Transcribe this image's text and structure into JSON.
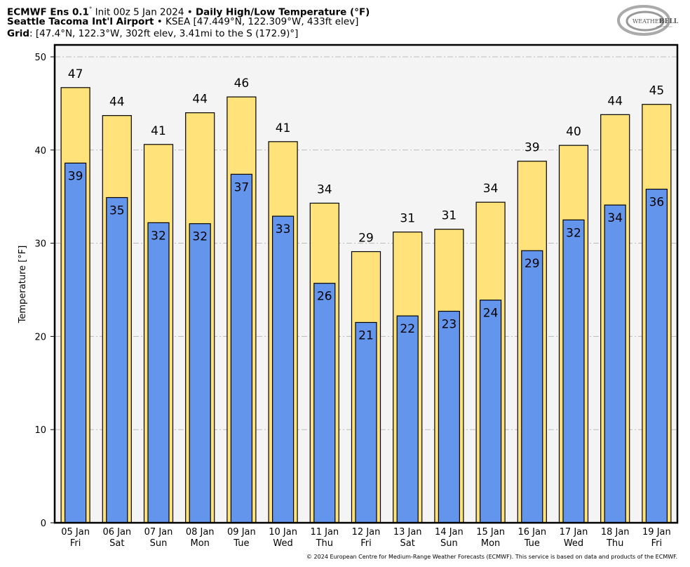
{
  "header": {
    "line1": {
      "model": "ECMWF Ens 0.1",
      "deg": "°",
      "init": " Init 00z 5 Jan 2024 • ",
      "product": "Daily High/Low Temperature (°F)"
    },
    "line2": {
      "station": "Seattle Tacoma Int'l Airport",
      "details": " • KSEA [47.449°N, 122.309°W, 433ft elev]"
    },
    "line3": {
      "label": "Grid",
      "details": ": [47.4°N, 122.3°W, 302ft elev, 3.41mi to the S (172.9)°]"
    }
  },
  "logo": {
    "text_main": "WEATHER",
    "text_bold": "BELL",
    "text_sub": "ANALYTICS LLC"
  },
  "footer": "© 2024 European Centre for Medium-Range Weather Forecasts (ECMWF). This service is based on data and products of the ECMWF.",
  "colors": {
    "high": "#FFE37A",
    "low": "#6495ED",
    "plot_bg": "#F4F4F4",
    "grid": "#BBBBBB"
  },
  "chart_data": {
    "type": "bar",
    "title": "Daily High/Low Temperature (°F)",
    "xlabel": "",
    "ylabel": "Temperature [°F]",
    "ylim": [
      0,
      51
    ],
    "yticks": [
      0,
      10,
      20,
      30,
      40,
      50
    ],
    "grid": true,
    "categories": [
      {
        "date": "05 Jan",
        "day": "Fri"
      },
      {
        "date": "06 Jan",
        "day": "Sat"
      },
      {
        "date": "07 Jan",
        "day": "Sun"
      },
      {
        "date": "08 Jan",
        "day": "Mon"
      },
      {
        "date": "09 Jan",
        "day": "Tue"
      },
      {
        "date": "10 Jan",
        "day": "Wed"
      },
      {
        "date": "11 Jan",
        "day": "Thu"
      },
      {
        "date": "12 Jan",
        "day": "Fri"
      },
      {
        "date": "13 Jan",
        "day": "Sat"
      },
      {
        "date": "14 Jan",
        "day": "Sun"
      },
      {
        "date": "15 Jan",
        "day": "Mon"
      },
      {
        "date": "16 Jan",
        "day": "Tue"
      },
      {
        "date": "17 Jan",
        "day": "Wed"
      },
      {
        "date": "18 Jan",
        "day": "Thu"
      },
      {
        "date": "19 Jan",
        "day": "Fri"
      }
    ],
    "series": [
      {
        "name": "High",
        "values": [
          46.7,
          43.7,
          40.6,
          44.0,
          45.7,
          40.9,
          34.3,
          29.1,
          31.2,
          31.5,
          34.4,
          38.8,
          40.5,
          43.8,
          44.9
        ],
        "labels": [
          "47",
          "44",
          "41",
          "44",
          "46",
          "41",
          "34",
          "29",
          "31",
          "31",
          "34",
          "39",
          "40",
          "44",
          "45"
        ]
      },
      {
        "name": "Low",
        "values": [
          38.6,
          34.9,
          32.2,
          32.1,
          37.4,
          32.9,
          25.7,
          21.5,
          22.2,
          22.7,
          23.9,
          29.2,
          32.5,
          34.1,
          35.8
        ],
        "labels": [
          "39",
          "35",
          "32",
          "32",
          "37",
          "33",
          "26",
          "21",
          "22",
          "23",
          "24",
          "29",
          "32",
          "34",
          "36"
        ]
      }
    ]
  }
}
